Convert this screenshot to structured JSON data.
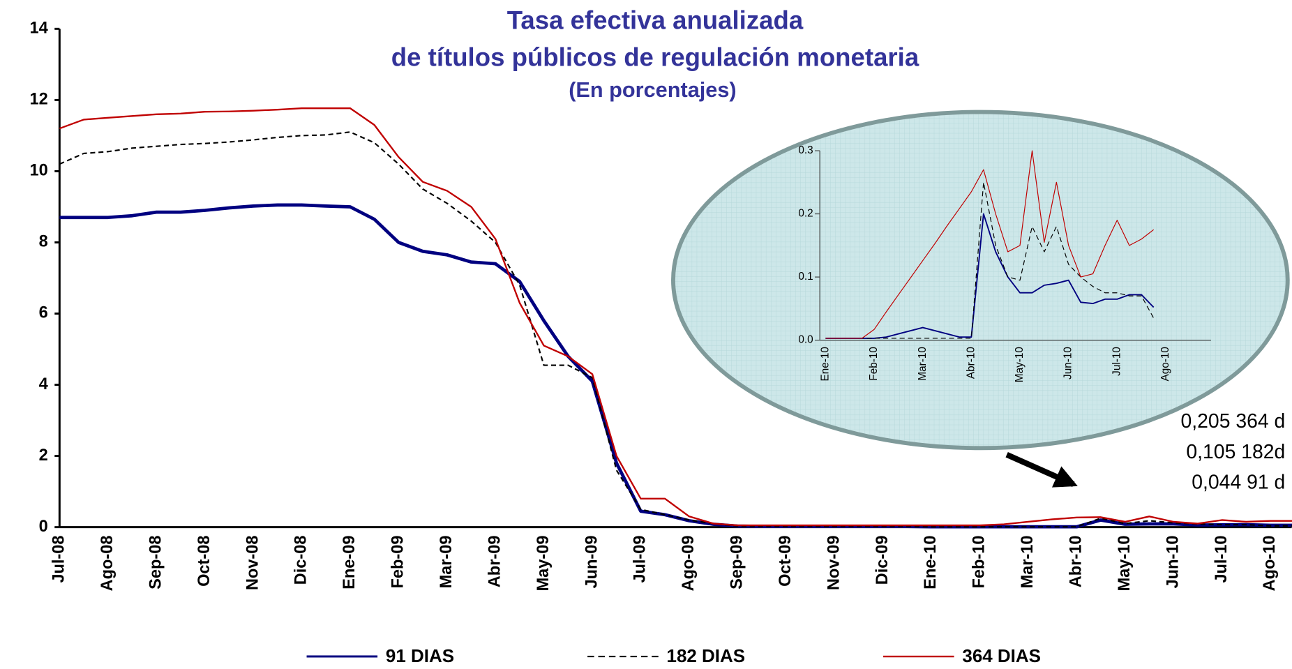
{
  "chart_data": [
    {
      "type": "line",
      "title": [
        "Tasa efectiva  anualizada",
        "de títulos públicos de regulación monetaria"
      ],
      "subtitle": "(En porcentajes)",
      "categories": [
        "Jul-08",
        null,
        "Ago-08",
        null,
        "Sep-08",
        null,
        "Oct-08",
        null,
        "Nov-08",
        null,
        "Dic-08",
        null,
        "Ene-09",
        null,
        "Feb-09",
        null,
        "Mar-09",
        null,
        "Abr-09",
        null,
        "May-09",
        null,
        "Jun-09",
        null,
        "Jul-09",
        null,
        "Ago-09",
        null,
        "Sep-09",
        null,
        "Oct-09",
        null,
        "Nov-09",
        null,
        "Dic-09",
        null,
        "Ene-10",
        null,
        "Feb-10",
        null,
        "Mar-10",
        null,
        "Abr-10",
        null,
        "May-10",
        null,
        "Jun-10",
        null,
        "Jul-10",
        null,
        "Ago-10",
        null
      ],
      "series": [
        {
          "name": "91 DIAS",
          "color": "#000080",
          "line_width": 4,
          "dashed": false,
          "values": [
            8.7,
            8.7,
            8.7,
            8.75,
            8.85,
            8.85,
            8.9,
            8.97,
            9.02,
            9.05,
            9.05,
            9.02,
            9.0,
            8.65,
            8.0,
            7.75,
            7.65,
            7.45,
            7.4,
            6.9,
            5.8,
            4.8,
            4.1,
            1.8,
            0.45,
            0.35,
            0.18,
            0.08,
            0.03,
            0.02,
            0.02,
            0.02,
            0.02,
            0.02,
            0.02,
            0.02,
            0.01,
            0.01,
            0.01,
            0.01,
            0.01,
            0.01,
            0.01,
            0.2,
            0.08,
            0.09,
            0.09,
            0.06,
            0.065,
            0.07,
            0.05,
            0.05
          ]
        },
        {
          "name": "182 DIAS",
          "color": "#000000",
          "line_width": 1.8,
          "dashed": true,
          "values": [
            10.2,
            10.5,
            10.55,
            10.65,
            10.7,
            10.75,
            10.78,
            10.82,
            10.88,
            10.95,
            11.0,
            11.02,
            11.1,
            10.8,
            10.2,
            9.5,
            9.1,
            8.6,
            8.0,
            6.8,
            4.55,
            4.55,
            4.2,
            1.6,
            0.5,
            0.35,
            0.2,
            0.1,
            0.03,
            0.02,
            0.02,
            0.02,
            0.02,
            0.02,
            0.02,
            0.02,
            0.01,
            0.01,
            0.01,
            0.01,
            0.01,
            0.01,
            0.01,
            0.25,
            0.1,
            0.18,
            0.12,
            0.09,
            0.07,
            0.07,
            0.035,
            0.035
          ]
        },
        {
          "name": "364 DIAS",
          "color": "#c00000",
          "line_width": 2,
          "dashed": false,
          "values": [
            11.2,
            11.45,
            11.5,
            11.55,
            11.6,
            11.62,
            11.67,
            11.68,
            11.7,
            11.73,
            11.77,
            11.77,
            11.77,
            11.3,
            10.4,
            9.7,
            9.45,
            9.0,
            8.1,
            6.3,
            5.1,
            4.8,
            4.3,
            2.0,
            0.8,
            0.8,
            0.3,
            0.1,
            0.05,
            0.05,
            0.05,
            0.05,
            0.05,
            0.05,
            0.05,
            0.05,
            0.05,
            0.05,
            0.05,
            0.08,
            0.15,
            0.22,
            0.27,
            0.28,
            0.15,
            0.3,
            0.15,
            0.1,
            0.2,
            0.15,
            0.175,
            0.175
          ]
        }
      ],
      "ylim": [
        0,
        14
      ],
      "yticks": [
        0,
        2,
        4,
        6,
        8,
        10,
        12,
        14
      ],
      "annotations": [
        "0,205  364 d",
        "0,105 182d",
        "0,044   91 d"
      ],
      "legend": "bottom"
    },
    {
      "type": "line",
      "categories": [
        "Ene-10",
        null,
        null,
        null,
        "Feb-10",
        null,
        null,
        null,
        "Mar-10",
        null,
        null,
        null,
        "Abr-10",
        null,
        null,
        null,
        "May-10",
        null,
        null,
        null,
        "Jun-10",
        null,
        null,
        null,
        "Jul-10",
        null,
        null,
        null,
        "Ago-10"
      ],
      "series": [
        {
          "color": "#000080",
          "line_width": 1.6,
          "dashed": false,
          "values": [
            0.003,
            0.003,
            0.003,
            0.003,
            0.003,
            0.005,
            0.01,
            0.015,
            0.02,
            0.015,
            0.01,
            0.005,
            0.005,
            0.2,
            0.14,
            0.1,
            0.075,
            0.075,
            0.087,
            0.09,
            0.095,
            0.06,
            0.058,
            0.065,
            0.065,
            0.072,
            0.072,
            0.052,
            null
          ]
        },
        {
          "color": "#000000",
          "line_width": 1,
          "dashed": true,
          "values": [
            0.003,
            0.003,
            0.003,
            0.003,
            0.003,
            0.003,
            0.003,
            0.003,
            0.003,
            0.003,
            0.003,
            0.003,
            0.003,
            0.25,
            0.15,
            0.1,
            0.095,
            0.18,
            0.14,
            0.18,
            0.12,
            0.1,
            0.085,
            0.075,
            0.075,
            0.07,
            0.07,
            0.035,
            null
          ]
        },
        {
          "color": "#c00000",
          "line_width": 1,
          "dashed": false,
          "values": [
            0.003,
            0.003,
            0.003,
            0.003,
            0.017,
            0.045,
            0.072,
            0.099,
            0.126,
            0.153,
            0.181,
            0.208,
            0.235,
            0.27,
            0.2,
            0.14,
            0.15,
            0.3,
            0.155,
            0.25,
            0.15,
            0.1,
            0.105,
            0.15,
            0.19,
            0.15,
            0.16,
            0.175,
            null
          ]
        }
      ],
      "ylim": [
        0,
        0.3
      ],
      "yticks": [
        {
          "value": 0,
          "label": "0.0"
        },
        0.1,
        0.2,
        0.3
      ]
    }
  ]
}
